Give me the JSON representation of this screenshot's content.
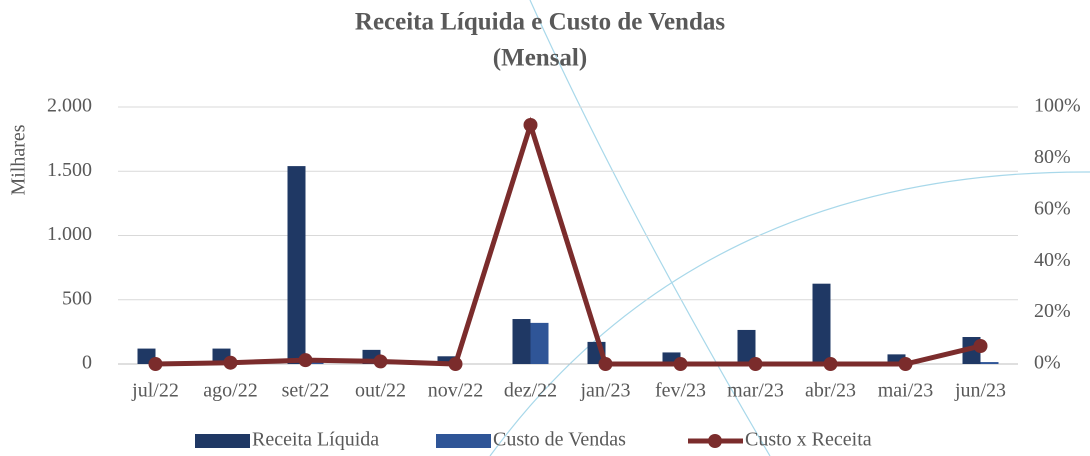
{
  "chart_data": {
    "type": "bar_line",
    "title": "Receita Líquida e Custo de Vendas",
    "subtitle": "(Mensal)",
    "y_label": "Milhares",
    "categories": [
      "jul/22",
      "ago/22",
      "set/22",
      "out/22",
      "nov/22",
      "dez/22",
      "jan/23",
      "fev/23",
      "mar/23",
      "abr/23",
      "mai/23",
      "jun/23"
    ],
    "series": [
      {
        "name": "Receita Líquida",
        "color": "#1f3864",
        "type": "bar",
        "values": [
          120,
          120,
          1540,
          110,
          60,
          350,
          172,
          90,
          265,
          625,
          75,
          210
        ]
      },
      {
        "name": "Custo de Vendas",
        "color": "#2f5597",
        "type": "bar",
        "values": [
          0,
          1,
          23,
          1,
          0,
          320,
          0,
          0,
          0,
          0,
          0,
          15
        ]
      },
      {
        "name": "Custo x Receita",
        "color": "#7b2c2c",
        "type": "line",
        "axis": "y2",
        "values": [
          0,
          0.5,
          1.5,
          1,
          0,
          93,
          0,
          0,
          0,
          0,
          0,
          7
        ]
      }
    ],
    "ylim": [
      0,
      2000
    ],
    "yticks": [
      0,
      500,
      {
        "value": 1000,
        "label": "1.000"
      },
      {
        "value": 1500,
        "label": "1.500"
      },
      {
        "value": 2000,
        "label": "2.000"
      }
    ],
    "y2lim": [
      0,
      100
    ],
    "y2ticks": [
      {
        "value": 0,
        "label": "0%"
      },
      {
        "value": 20,
        "label": "20%"
      },
      {
        "value": 40,
        "label": "40%"
      },
      {
        "value": 60,
        "label": "60%"
      },
      {
        "value": 80,
        "label": "80%"
      },
      {
        "value": 100,
        "label": "100%"
      }
    ],
    "grid": true,
    "legend": "bottom"
  }
}
